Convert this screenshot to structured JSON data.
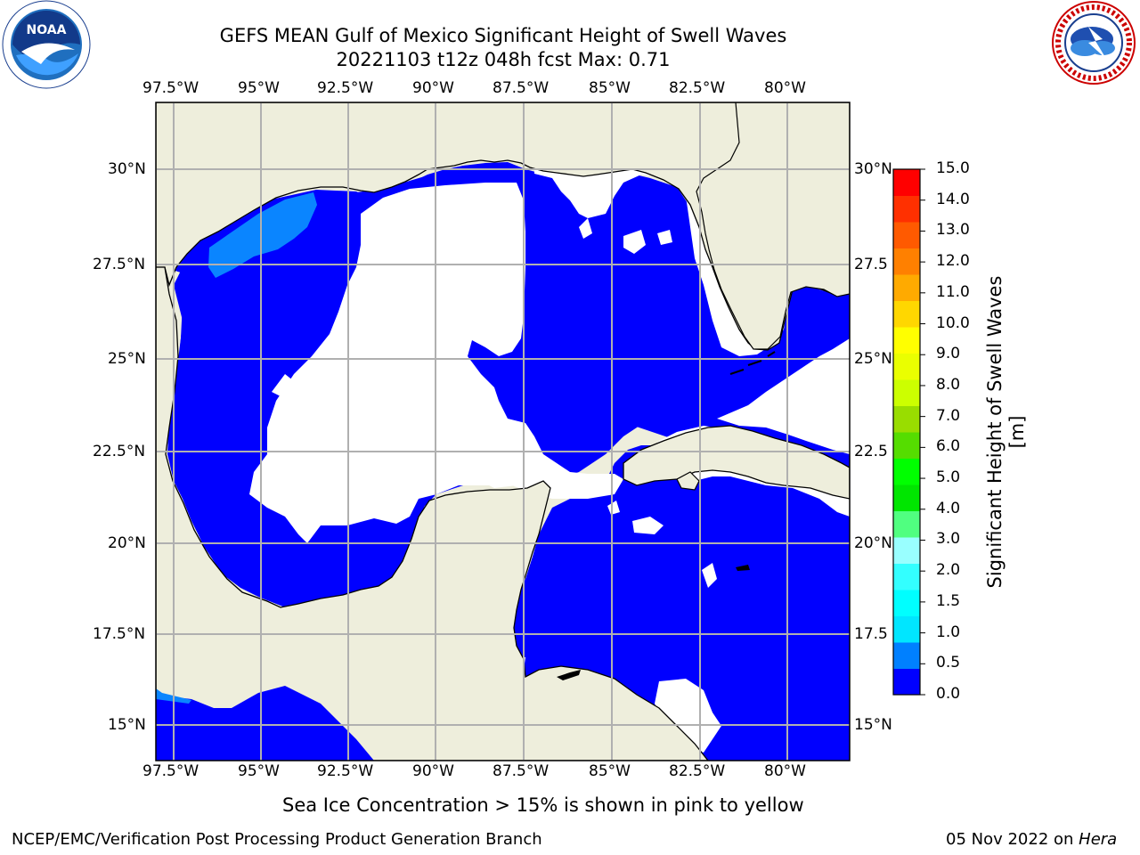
{
  "header": {
    "title_line1": "GEFS MEAN Gulf of Mexico Significant Height of Swell Waves",
    "title_line2": "20221103 t12z 048h fcst   Max: 0.71"
  },
  "logos": {
    "left": {
      "name": "noaa-logo",
      "text": "NOAA",
      "ring_text": "NATIONAL OCEANIC AND ATMOSPHERIC ADMINISTRATION · U.S. DEPARTMENT OF COMMERCE"
    },
    "right": {
      "name": "nws-logo",
      "ring_text": "NATIONAL WEATHER SERVICE"
    }
  },
  "map": {
    "lon_labels": [
      "97.5°W",
      "95°W",
      "92.5°W",
      "90°W",
      "87.5°W",
      "85°W",
      "82.5°W",
      "80°W"
    ],
    "lat_labels_left": [
      "30°N",
      "27.5°N",
      "25°N",
      "22.5°N",
      "20°N",
      "17.5°N",
      "15°N"
    ],
    "lat_labels_right": [
      "30°N",
      "27.5",
      "25°N",
      "22.5",
      "20°N",
      "17.5",
      "15°N"
    ],
    "colors": {
      "land": "#eeeedc",
      "ocean_low": "#0000ff",
      "ocean_05": "#0080ff",
      "no_data": "#ffffff",
      "grid": "#b0b0b0"
    }
  },
  "colorbar": {
    "title": "Significant Height of Swell Waves [m]",
    "tick_labels": [
      "0.0",
      "0.5",
      "1.0",
      "1.5",
      "2.0",
      "3.0",
      "4.0",
      "5.0",
      "6.0",
      "7.0",
      "8.0",
      "9.0",
      "10.0",
      "11.0",
      "12.0",
      "13.0",
      "14.0",
      "15.0"
    ],
    "colors": [
      "#0000ff",
      "#0080ff",
      "#00e6ff",
      "#00ffff",
      "#33ffff",
      "#99ffff",
      "#50ff80",
      "#00e600",
      "#00ff00",
      "#55dd00",
      "#99dd00",
      "#ccff00",
      "#eaff00",
      "#ffff00",
      "#ffd700",
      "#ffaa00",
      "#ff8000",
      "#ff5a00",
      "#ff3000",
      "#ff0000"
    ]
  },
  "notes": {
    "sea_ice": "Sea Ice Concentration > 15% is shown in pink to yellow",
    "producer": "NCEP/EMC/Verification Post Processing Product Generation Branch",
    "date_prefix": "05 Nov 2022 on ",
    "machine": "Hera"
  }
}
